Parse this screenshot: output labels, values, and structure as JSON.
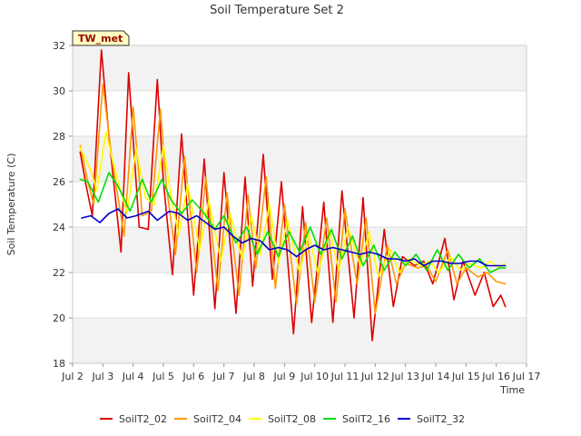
{
  "chart_data": {
    "type": "line",
    "title": "Soil Temperature Set 2",
    "xlabel": "Time",
    "ylabel": "Soil Temperature (C)",
    "xlim": [
      2.0,
      17.0
    ],
    "ylim": [
      18,
      32
    ],
    "x_ticks": [
      {
        "v": 2,
        "label": "Jul 2"
      },
      {
        "v": 3,
        "label": "Jul 3"
      },
      {
        "v": 4,
        "label": "Jul 4"
      },
      {
        "v": 5,
        "label": "Jul 5"
      },
      {
        "v": 6,
        "label": "Jul 6"
      },
      {
        "v": 7,
        "label": "Jul 7"
      },
      {
        "v": 8,
        "label": "Jul 8"
      },
      {
        "v": 9,
        "label": "Jul 9"
      },
      {
        "v": 10,
        "label": "Jul 10"
      },
      {
        "v": 11,
        "label": "Jul 11"
      },
      {
        "v": 12,
        "label": "Jul 12"
      },
      {
        "v": 13,
        "label": "Jul 13"
      },
      {
        "v": 14,
        "label": "Jul 14"
      },
      {
        "v": 15,
        "label": "Jul 15"
      },
      {
        "v": 16,
        "label": "Jul 16"
      },
      {
        "v": 17,
        "label": "Jul 17"
      }
    ],
    "y_ticks": [
      18,
      20,
      22,
      24,
      26,
      28,
      30,
      32
    ],
    "legend_position": "bottom",
    "annotation": "TW_met",
    "series": [
      {
        "name": "SoilT2_02",
        "color": "#dd0000",
        "x": [
          2.25,
          2.45,
          2.65,
          2.95,
          3.2,
          3.6,
          3.85,
          4.2,
          4.5,
          4.8,
          5.0,
          5.3,
          5.6,
          6.0,
          6.35,
          6.7,
          7.0,
          7.4,
          7.7,
          7.95,
          8.3,
          8.6,
          8.9,
          9.3,
          9.6,
          9.9,
          10.3,
          10.6,
          10.9,
          11.3,
          11.6,
          11.9,
          12.3,
          12.6,
          12.9,
          13.3,
          13.6,
          13.9,
          14.3,
          14.6,
          14.9,
          15.3,
          15.6,
          15.9,
          16.15,
          16.3
        ],
        "y": [
          27.3,
          25.8,
          24.5,
          31.8,
          28.0,
          22.9,
          30.8,
          24.0,
          23.9,
          30.5,
          26.0,
          21.9,
          28.1,
          21.0,
          27.0,
          20.4,
          26.4,
          20.2,
          26.2,
          21.4,
          27.2,
          21.7,
          26.0,
          19.3,
          24.9,
          19.8,
          25.1,
          19.8,
          25.6,
          20.0,
          25.3,
          19.0,
          23.9,
          20.5,
          22.7,
          22.3,
          22.5,
          21.5,
          23.5,
          20.8,
          22.5,
          21.0,
          22.0,
          20.5,
          21.0,
          20.5
        ]
      },
      {
        "name": "SoilT2_04",
        "color": "#ff9900",
        "x": [
          2.25,
          2.5,
          2.7,
          3.0,
          3.3,
          3.7,
          4.0,
          4.3,
          4.6,
          4.9,
          5.1,
          5.4,
          5.7,
          6.1,
          6.4,
          6.8,
          7.1,
          7.5,
          7.8,
          8.05,
          8.4,
          8.7,
          9.0,
          9.4,
          9.7,
          10.0,
          10.4,
          10.7,
          11.0,
          11.4,
          11.7,
          12.0,
          12.4,
          12.7,
          13.0,
          13.4,
          13.7,
          14.0,
          14.4,
          14.7,
          15.0,
          15.4,
          15.7,
          16.0,
          16.3
        ],
        "y": [
          27.6,
          26.0,
          25.0,
          30.3,
          27.0,
          23.6,
          29.3,
          24.5,
          24.7,
          29.2,
          25.8,
          22.8,
          27.1,
          22.0,
          26.2,
          21.2,
          25.5,
          21.0,
          25.4,
          22.2,
          26.2,
          21.3,
          25.0,
          20.6,
          24.2,
          20.7,
          24.4,
          20.7,
          24.8,
          21.5,
          24.4,
          20.2,
          23.2,
          21.5,
          22.4,
          22.2,
          22.3,
          21.6,
          23.0,
          21.5,
          22.2,
          21.8,
          22.0,
          21.6,
          21.5
        ]
      },
      {
        "name": "SoilT2_08",
        "color": "#ffff00",
        "x": [
          2.25,
          2.6,
          2.8,
          3.1,
          3.4,
          3.8,
          4.1,
          4.4,
          4.7,
          5.0,
          5.2,
          5.5,
          5.8,
          6.2,
          6.5,
          6.9,
          7.2,
          7.6,
          7.9,
          8.2,
          8.5,
          8.8,
          9.1,
          9.5,
          9.8,
          10.1,
          10.5,
          10.8,
          11.1,
          11.5,
          11.8,
          12.1,
          12.5,
          12.8,
          13.1,
          13.5,
          13.8,
          14.1,
          14.5,
          14.8,
          15.1,
          15.5,
          15.8,
          16.1,
          16.3
        ],
        "y": [
          27.5,
          26.5,
          25.6,
          28.2,
          26.5,
          24.6,
          27.5,
          25.3,
          25.0,
          27.6,
          25.8,
          23.6,
          25.9,
          23.0,
          25.2,
          22.5,
          24.6,
          22.6,
          24.5,
          22.8,
          25.0,
          22.4,
          24.3,
          22.0,
          23.7,
          22.0,
          23.8,
          22.1,
          24.0,
          22.3,
          23.8,
          21.8,
          23.0,
          22.0,
          22.6,
          22.3,
          22.5,
          22.0,
          22.7,
          22.1,
          22.4,
          22.2,
          22.5,
          22.2,
          22.4
        ]
      },
      {
        "name": "SoilT2_16",
        "color": "#00dd00",
        "x": [
          2.25,
          2.5,
          2.85,
          3.2,
          3.5,
          3.9,
          4.3,
          4.6,
          4.95,
          5.25,
          5.6,
          5.95,
          6.35,
          6.7,
          7.0,
          7.4,
          7.75,
          8.1,
          8.45,
          8.8,
          9.15,
          9.5,
          9.85,
          10.2,
          10.55,
          10.9,
          11.25,
          11.6,
          11.95,
          12.3,
          12.65,
          13.0,
          13.35,
          13.7,
          14.05,
          14.4,
          14.75,
          15.1,
          15.45,
          15.8,
          16.1,
          16.3
        ],
        "y": [
          26.1,
          26.0,
          25.1,
          26.4,
          25.8,
          24.7,
          26.1,
          25.1,
          26.1,
          25.2,
          24.6,
          25.2,
          24.6,
          23.9,
          24.5,
          23.3,
          24.0,
          22.8,
          23.8,
          22.7,
          23.8,
          22.9,
          24.0,
          22.8,
          23.9,
          22.6,
          23.6,
          22.3,
          23.2,
          22.1,
          22.9,
          22.3,
          22.8,
          22.1,
          23.0,
          22.1,
          22.8,
          22.2,
          22.6,
          22.0,
          22.2,
          22.2
        ]
      },
      {
        "name": "SoilT2_32",
        "color": "#0000cc",
        "x": [
          2.3,
          2.6,
          2.9,
          3.2,
          3.5,
          3.8,
          4.1,
          4.5,
          4.8,
          5.2,
          5.5,
          5.8,
          6.1,
          6.4,
          6.7,
          7.0,
          7.3,
          7.6,
          7.9,
          8.2,
          8.5,
          8.8,
          9.1,
          9.4,
          9.7,
          10.0,
          10.3,
          10.6,
          10.9,
          11.2,
          11.5,
          11.8,
          12.1,
          12.4,
          12.7,
          13.0,
          13.3,
          13.6,
          13.9,
          14.2,
          14.5,
          14.8,
          15.1,
          15.4,
          15.7,
          16.0,
          16.3
        ],
        "y": [
          24.4,
          24.5,
          24.2,
          24.6,
          24.8,
          24.4,
          24.5,
          24.7,
          24.3,
          24.7,
          24.6,
          24.3,
          24.5,
          24.2,
          23.9,
          24.0,
          23.6,
          23.3,
          23.5,
          23.4,
          23.0,
          23.1,
          23.0,
          22.7,
          23.0,
          23.2,
          23.0,
          23.1,
          23.0,
          22.9,
          22.8,
          22.9,
          22.8,
          22.6,
          22.6,
          22.5,
          22.6,
          22.3,
          22.5,
          22.5,
          22.4,
          22.4,
          22.5,
          22.5,
          22.3,
          22.3,
          22.3
        ]
      }
    ]
  }
}
